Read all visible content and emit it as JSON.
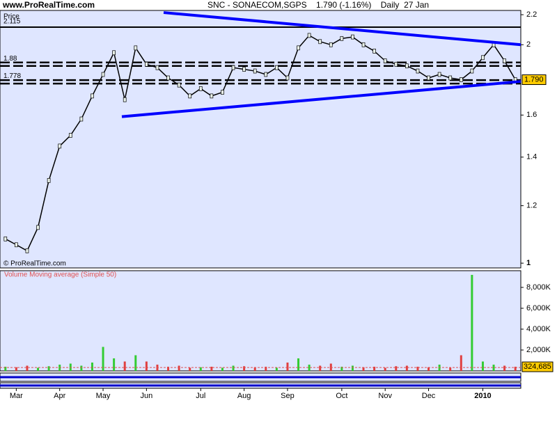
{
  "header": {
    "site": "www.ProRealTime.com",
    "title": "SNC - SONAECOM,SGPS    1.790 (-1.16%)    Daily  27 Jan",
    "copyright": "© ProRealTime.com"
  },
  "chart_data": [
    {
      "type": "line",
      "ylabel": "Price",
      "log_scale": true,
      "color": "#000000",
      "categories": [
        null,
        "Mar",
        null,
        null,
        null,
        "Apr",
        null,
        null,
        null,
        "May",
        null,
        null,
        null,
        "Jun",
        null,
        null,
        null,
        null,
        "Jul",
        null,
        null,
        null,
        "Aug",
        null,
        null,
        null,
        "Sep",
        null,
        null,
        null,
        null,
        "Oct",
        null,
        null,
        null,
        "Nov",
        null,
        null,
        null,
        "Dec",
        null,
        null,
        null,
        null,
        "2010",
        null,
        null,
        null
      ],
      "values": [
        1.08,
        1.06,
        1.04,
        1.12,
        1.3,
        1.45,
        1.5,
        1.58,
        1.7,
        1.82,
        1.95,
        1.68,
        1.98,
        1.88,
        1.86,
        1.8,
        1.76,
        1.7,
        1.74,
        1.7,
        1.72,
        1.86,
        1.85,
        1.84,
        1.82,
        1.86,
        1.8,
        1.98,
        2.06,
        2.02,
        2.0,
        2.04,
        2.05,
        2.0,
        1.96,
        1.9,
        1.88,
        1.87,
        1.84,
        1.8,
        1.82,
        1.8,
        1.79,
        1.84,
        1.92,
        2.0,
        1.9,
        1.79
      ],
      "ylim": [
        0.985,
        2.23
      ],
      "yticks": [
        1,
        1.2,
        1.4,
        1.6,
        2,
        2.2
      ],
      "levels": [
        2.115,
        1.88,
        1.778
      ],
      "trendlines": [
        {
          "color": "#0000ff",
          "values": [
            2.215,
            2.0
          ]
        },
        {
          "color": "#0000ff",
          "values": [
            1.592,
            1.78
          ]
        }
      ],
      "last_value": 1.79,
      "last_value_label": "1.790"
    },
    {
      "type": "bar",
      "title": "Volume Moving average (Simple 50)",
      "values": [
        400000,
        350000,
        500000,
        300000,
        450000,
        600000,
        700000,
        500000,
        800000,
        2300000,
        1200000,
        900000,
        1500000,
        900000,
        600000,
        400000,
        500000,
        300000,
        350000,
        400000,
        300000,
        500000,
        450000,
        350000,
        400000,
        300000,
        800000,
        1200000,
        600000,
        500000,
        700000,
        400000,
        500000,
        350000,
        400000,
        300000,
        450000,
        500000,
        400000,
        350000,
        600000,
        300000,
        1500000,
        9200000,
        900000,
        600000,
        500000,
        400000
      ],
      "ylim": [
        0,
        9600000
      ],
      "yticks": [
        {
          "value": 2000000,
          "label": "2,000K"
        },
        {
          "value": 4000000,
          "label": "4,000K"
        },
        {
          "value": 6000000,
          "label": "6,000K"
        },
        {
          "value": 8000000,
          "label": "8,000K"
        }
      ],
      "last_average": 324685,
      "last_average_label": "324,685"
    }
  ]
}
